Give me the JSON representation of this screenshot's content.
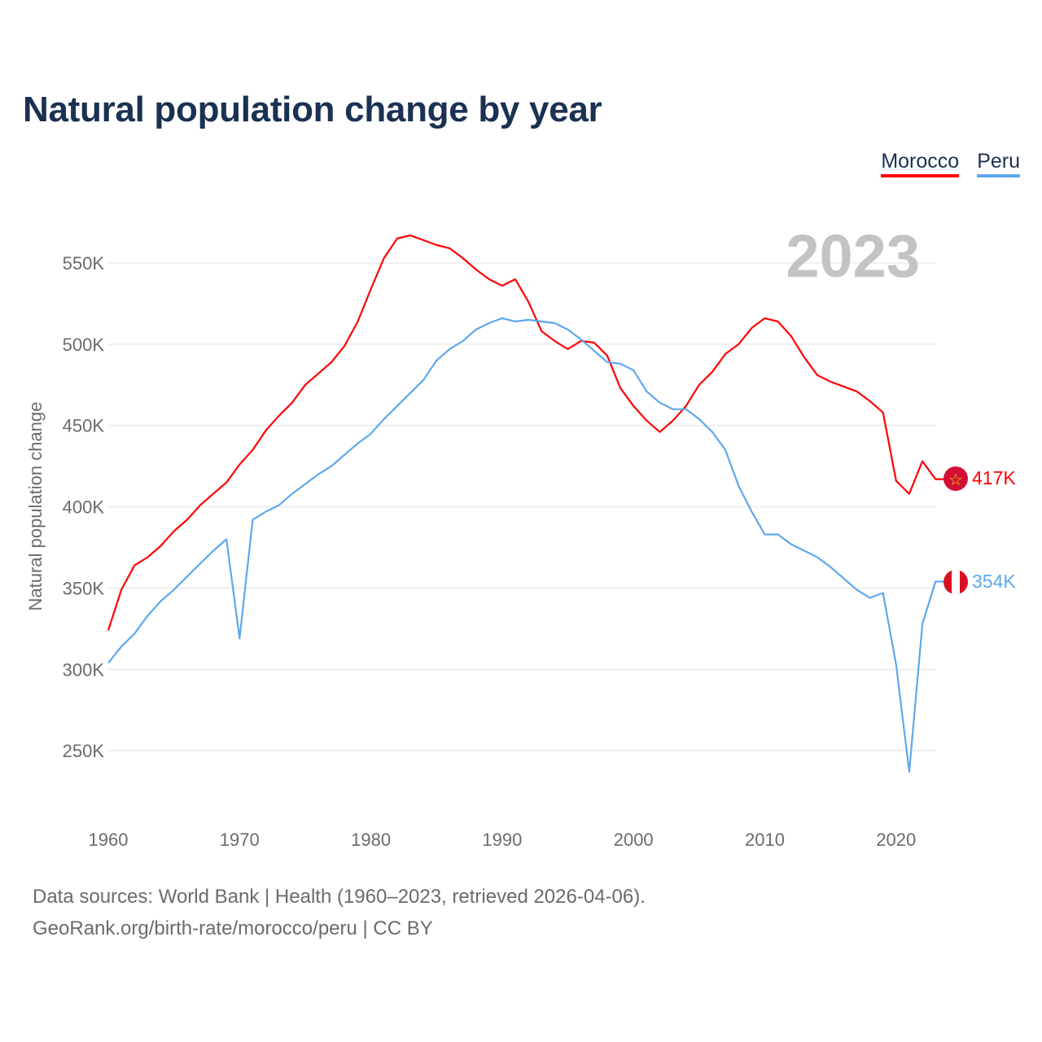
{
  "title": "Natural population change by year",
  "legend": [
    {
      "label": "Morocco",
      "color": "#ff0000"
    },
    {
      "label": "Peru",
      "color": "#5ea8ec"
    }
  ],
  "footer": {
    "line1": "Data sources: World Bank | Health (1960–2023, retrieved 2026-04-06).",
    "line2": "GeoRank.org/birth-rate/morocco/peru | CC BY"
  },
  "chart_data": {
    "type": "line",
    "title": "Natural population change by year",
    "xlabel": "",
    "ylabel": "Natural population change",
    "year_label": "2023",
    "xlim": [
      1960,
      2023
    ],
    "ylim": [
      215,
      585
    ],
    "x_ticks": [
      1960,
      1970,
      1980,
      1990,
      2000,
      2010,
      2020
    ],
    "y_ticks": [
      250,
      300,
      350,
      400,
      450,
      500,
      550
    ],
    "y_tick_labels": [
      "250K",
      "300K",
      "350K",
      "400K",
      "450K",
      "500K",
      "550K"
    ],
    "grid": true,
    "legend_position": "top-right",
    "units": "thousands",
    "x": [
      1960,
      1961,
      1962,
      1963,
      1964,
      1965,
      1966,
      1967,
      1968,
      1969,
      1970,
      1971,
      1972,
      1973,
      1974,
      1975,
      1976,
      1977,
      1978,
      1979,
      1980,
      1981,
      1982,
      1983,
      1984,
      1985,
      1986,
      1987,
      1988,
      1989,
      1990,
      1991,
      1992,
      1993,
      1994,
      1995,
      1996,
      1997,
      1998,
      1999,
      2000,
      2001,
      2002,
      2003,
      2004,
      2005,
      2006,
      2007,
      2008,
      2009,
      2010,
      2011,
      2012,
      2013,
      2014,
      2015,
      2016,
      2017,
      2018,
      2019,
      2020,
      2021,
      2022,
      2023
    ],
    "series": [
      {
        "name": "Morocco",
        "color": "#ff0000",
        "end_label": "417K",
        "values": [
          324,
          349,
          364,
          369,
          376,
          385,
          392,
          401,
          408,
          415,
          426,
          435,
          447,
          456,
          464,
          475,
          482,
          489,
          499,
          514,
          534,
          553,
          565,
          567,
          564,
          561,
          559,
          553,
          546,
          540,
          536,
          540,
          526,
          508,
          502,
          497,
          502,
          501,
          493,
          473,
          462,
          453,
          446,
          453,
          462,
          475,
          483,
          494,
          500,
          510,
          516,
          514,
          505,
          492,
          481,
          477,
          474,
          471,
          465,
          458,
          416,
          408,
          428,
          417
        ]
      },
      {
        "name": "Peru",
        "color": "#5ea8ec",
        "end_label": "354K",
        "values": [
          304,
          314,
          322,
          333,
          342,
          349,
          357,
          365,
          373,
          380,
          319,
          392,
          397,
          401,
          408,
          414,
          420,
          425,
          432,
          439,
          445,
          454,
          462,
          470,
          478,
          490,
          497,
          502,
          509,
          513,
          516,
          514,
          515,
          514,
          513,
          509,
          503,
          496,
          489,
          488,
          484,
          471,
          464,
          460,
          460,
          454,
          446,
          435,
          413,
          397,
          383,
          383,
          377,
          373,
          369,
          363,
          356,
          349,
          344,
          347,
          303,
          237,
          328,
          354
        ]
      }
    ]
  }
}
